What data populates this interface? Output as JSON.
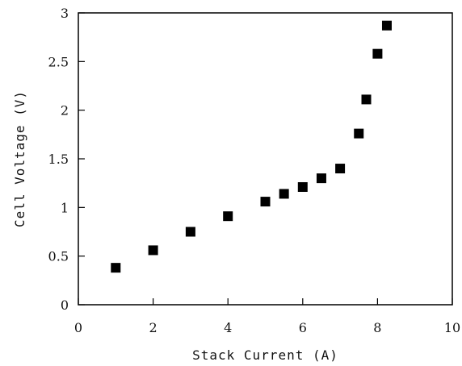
{
  "chart_data": {
    "type": "scatter",
    "title": "",
    "xlabel": "Stack Current (A)",
    "ylabel": "Cell Voltage (V)",
    "xlim": [
      0,
      10
    ],
    "ylim": [
      0,
      3
    ],
    "x_ticks": [
      0,
      2,
      4,
      6,
      8,
      10
    ],
    "y_ticks": [
      0,
      0.5,
      1,
      1.5,
      2,
      2.5,
      3
    ],
    "grid": false,
    "marker": "filled-square",
    "color": "#000000",
    "series": [
      {
        "x": [
          1,
          2,
          3,
          4,
          5,
          5.5,
          6,
          6.5,
          7,
          7.5,
          7.7,
          8,
          8.25
        ],
        "y": [
          0.38,
          0.56,
          0.75,
          0.91,
          1.06,
          1.14,
          1.21,
          1.3,
          1.4,
          1.76,
          2.11,
          2.58,
          2.87
        ]
      }
    ]
  }
}
